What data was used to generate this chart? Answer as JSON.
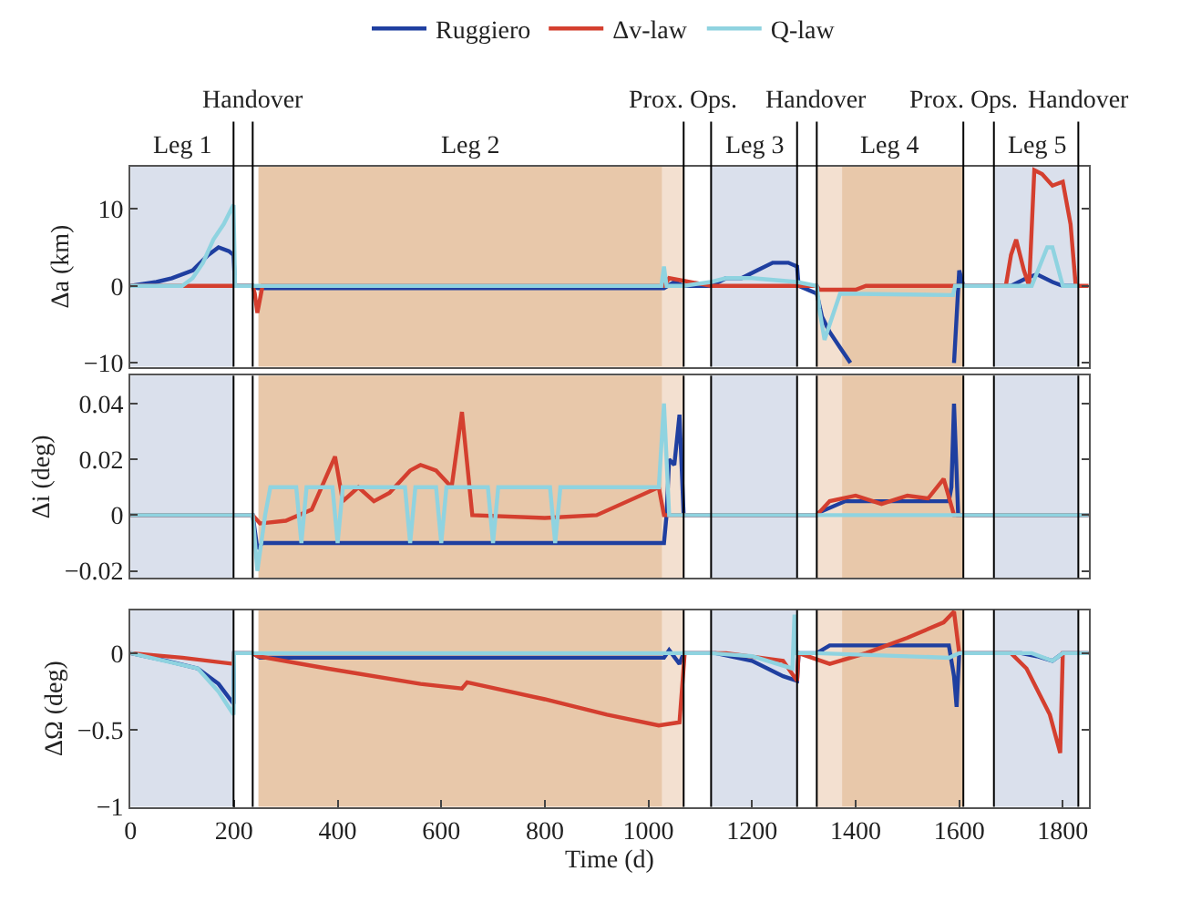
{
  "chart_data": [
    {
      "type": "line",
      "ylabel": "Δa (km)",
      "xlim": [
        0,
        1850
      ],
      "ylim": [
        -10.5,
        15.5
      ],
      "yticks": [
        {
          "value": -10,
          "label": "−10"
        },
        0,
        10
      ],
      "tick_labels": "y",
      "legend": "top",
      "grid": false,
      "line_style": "solid",
      "marker": "none",
      "series": [
        {
          "name": "Ruggiero",
          "color": "#1f3fa0",
          "x": [
            0,
            50,
            80,
            120,
            150,
            170,
            190,
            199,
            202,
            236,
            245,
            600,
            1030,
            1050,
            1068,
            1121,
            1150,
            1180,
            1210,
            1240,
            1270,
            1287,
            1290,
            1325,
            1335,
            1350,
            1370,
            1390,
            1392,
            1588,
            1590,
            1600,
            1608,
            1667,
            1700,
            1730,
            1750,
            1780,
            1800,
            1830
          ],
          "values": [
            0,
            0.5,
            1,
            2,
            4,
            5,
            4.5,
            4,
            0,
            0,
            -0.3,
            -0.3,
            -0.3,
            0.5,
            0,
            0,
            1,
            1,
            2,
            3,
            3,
            2.5,
            0,
            -1,
            -4,
            -6,
            -8,
            -10,
            null,
            null,
            -10,
            2,
            0,
            0,
            0,
            1,
            1.5,
            0.5,
            0,
            0
          ]
        },
        {
          "name": "Δv-law",
          "color": "#d43f2f",
          "x": [
            0,
            236,
            240,
            245,
            255,
            600,
            1030,
            1040,
            1121,
            1325,
            1330,
            1400,
            1420,
            1667,
            1690,
            1700,
            1710,
            1725,
            1735,
            1745,
            1760,
            1780,
            1800,
            1815,
            1825,
            1850
          ],
          "values": [
            0,
            0,
            -1,
            -3.5,
            0,
            0,
            0,
            1,
            0,
            0,
            -0.5,
            -0.5,
            0,
            0,
            0,
            4,
            6,
            2,
            0,
            15,
            14.5,
            13,
            13.5,
            8,
            0,
            0
          ]
        },
        {
          "name": "Q-law",
          "color": "#8fd3e0",
          "x": [
            0,
            100,
            120,
            140,
            160,
            180,
            195,
            199,
            202,
            236,
            600,
            1025,
            1030,
            1035,
            1068,
            1121,
            1150,
            1200,
            1287,
            1325,
            1330,
            1340,
            1350,
            1370,
            1588,
            1592,
            1667,
            1740,
            1770,
            1780,
            1800,
            1830
          ],
          "values": [
            0,
            0,
            1,
            3,
            6,
            8,
            10,
            10.5,
            0,
            0,
            0,
            0,
            2.5,
            0,
            0,
            0.5,
            1,
            1,
            0.5,
            0,
            -3,
            -7,
            -5,
            -1,
            -1.2,
            0,
            0,
            0,
            5,
            5,
            0,
            0
          ]
        }
      ],
      "bands": [
        {
          "axis": "x",
          "from": 0,
          "to": 199,
          "label": "Leg 1",
          "color": "#dae0ec"
        },
        {
          "axis": "x",
          "from": 247,
          "to": 1068,
          "label": "Leg 2",
          "color": "#e8c8aa"
        },
        {
          "axis": "x",
          "from": 1026,
          "to": 1068,
          "color": "#f3e0d0"
        },
        {
          "axis": "x",
          "from": 1121,
          "to": 1287,
          "label": "Leg 3",
          "color": "#dae0ec"
        },
        {
          "axis": "x",
          "from": 1325,
          "to": 1608,
          "label": "Leg 4",
          "color": "#e8c8aa"
        },
        {
          "axis": "x",
          "from": 1325,
          "to": 1374,
          "color": "#f3e0d0"
        },
        {
          "axis": "x",
          "from": 1667,
          "to": 1830,
          "label": "Leg 5",
          "color": "#dae0ec"
        }
      ],
      "ref_lines": [
        {
          "axis": "x",
          "value": 199,
          "color": "#000000"
        },
        {
          "axis": "x",
          "value": 236,
          "color": "#000000",
          "label": "Handover"
        },
        {
          "axis": "x",
          "value": 1068,
          "color": "#000000",
          "label": "Prox. Ops."
        },
        {
          "axis": "x",
          "value": 1121,
          "color": "#000000"
        },
        {
          "axis": "x",
          "value": 1287,
          "color": "#000000"
        },
        {
          "axis": "x",
          "value": 1325,
          "color": "#000000",
          "label": "Handover"
        },
        {
          "axis": "x",
          "value": 1608,
          "color": "#000000",
          "label": "Prox. Ops."
        },
        {
          "axis": "x",
          "value": 1667,
          "color": "#000000"
        },
        {
          "axis": "x",
          "value": 1830,
          "color": "#000000",
          "label": "Handover"
        }
      ]
    },
    {
      "type": "line",
      "ylabel": "Δi (deg)",
      "xlim": [
        0,
        1850
      ],
      "ylim": [
        -0.0225,
        0.05
      ],
      "yticks": [
        {
          "value": -0.02,
          "label": "−0.02"
        },
        0,
        0.02,
        0.04
      ],
      "tick_labels": "y",
      "grid": false,
      "line_style": "solid",
      "marker": "none",
      "series": [
        {
          "color": "#1f3fa0",
          "x": [
            0,
            236,
            245,
            255,
            1030,
            1035,
            1040,
            1050,
            1060,
            1068,
            1121,
            1325,
            1330,
            1380,
            1580,
            1585,
            1590,
            1598,
            1850
          ],
          "values": [
            0,
            0,
            -0.012,
            -0.01,
            -0.01,
            0,
            0.02,
            0.018,
            0.036,
            0,
            0,
            0,
            0.001,
            0.005,
            0.005,
            0.01,
            0.04,
            0,
            0
          ]
        },
        {
          "color": "#d43f2f",
          "x": [
            0,
            236,
            250,
            300,
            350,
            395,
            410,
            440,
            470,
            500,
            540,
            560,
            590,
            620,
            640,
            660,
            800,
            900,
            1020,
            1030,
            1325,
            1350,
            1400,
            1450,
            1500,
            1540,
            1570,
            1590,
            1850
          ],
          "values": [
            0,
            0,
            -0.003,
            -0.002,
            0.002,
            0.021,
            0.005,
            0.01,
            0.005,
            0.008,
            0.016,
            0.018,
            0.016,
            0.01,
            0.037,
            0,
            -0.001,
            0,
            0.01,
            0,
            0,
            0.005,
            0.007,
            0.004,
            0.007,
            0.006,
            0.013,
            0,
            0
          ]
        },
        {
          "color": "#8fd3e0",
          "x": [
            0,
            236,
            245,
            260,
            270,
            320,
            330,
            340,
            390,
            400,
            410,
            530,
            540,
            550,
            590,
            600,
            610,
            690,
            700,
            710,
            810,
            820,
            830,
            1020,
            1030,
            1040,
            1850
          ],
          "values": [
            0,
            0,
            -0.02,
            0,
            0.01,
            0.01,
            -0.01,
            0.01,
            0.01,
            -0.01,
            0.01,
            0.01,
            -0.01,
            0.01,
            0.01,
            -0.01,
            0.01,
            0.01,
            -0.01,
            0.01,
            0.01,
            -0.01,
            0.01,
            0.01,
            0.04,
            0,
            0
          ]
        }
      ],
      "bands": [
        {
          "axis": "x",
          "from": 0,
          "to": 199,
          "color": "#dae0ec"
        },
        {
          "axis": "x",
          "from": 247,
          "to": 1068,
          "color": "#e8c8aa"
        },
        {
          "axis": "x",
          "from": 1026,
          "to": 1068,
          "color": "#f3e0d0"
        },
        {
          "axis": "x",
          "from": 1121,
          "to": 1287,
          "color": "#dae0ec"
        },
        {
          "axis": "x",
          "from": 1325,
          "to": 1608,
          "color": "#e8c8aa"
        },
        {
          "axis": "x",
          "from": 1325,
          "to": 1374,
          "color": "#f3e0d0"
        },
        {
          "axis": "x",
          "from": 1667,
          "to": 1830,
          "color": "#dae0ec"
        }
      ],
      "ref_lines": [
        {
          "axis": "x",
          "value": 199,
          "color": "#000000"
        },
        {
          "axis": "x",
          "value": 236,
          "color": "#000000"
        },
        {
          "axis": "x",
          "value": 1068,
          "color": "#000000"
        },
        {
          "axis": "x",
          "value": 1121,
          "color": "#000000"
        },
        {
          "axis": "x",
          "value": 1287,
          "color": "#000000"
        },
        {
          "axis": "x",
          "value": 1325,
          "color": "#000000"
        },
        {
          "axis": "x",
          "value": 1608,
          "color": "#000000"
        },
        {
          "axis": "x",
          "value": 1667,
          "color": "#000000"
        },
        {
          "axis": "x",
          "value": 1830,
          "color": "#000000"
        }
      ]
    },
    {
      "type": "line",
      "ylabel": "ΔΩ (deg)",
      "xlabel": "Time (d)",
      "xlim": [
        0,
        1850
      ],
      "xticks": [
        0,
        200,
        400,
        600,
        800,
        1000,
        1200,
        1400,
        1600,
        1800
      ],
      "ylim": [
        -1,
        0.28
      ],
      "yticks": [
        {
          "value": -1,
          "label": "−1"
        },
        {
          "value": -0.5,
          "label": "−0.5"
        },
        0
      ],
      "grid": false,
      "line_style": "solid",
      "marker": "none",
      "series": [
        {
          "color": "#1f3fa0",
          "x": [
            0,
            70,
            130,
            170,
            199,
            200,
            236,
            250,
            1030,
            1040,
            1060,
            1068,
            1130,
            1200,
            1260,
            1287,
            1290,
            1325,
            1350,
            1580,
            1590,
            1595,
            1600,
            1720,
            1750,
            1780,
            1800,
            1850
          ],
          "values": [
            0,
            -0.05,
            -0.1,
            -0.2,
            -0.33,
            0,
            0,
            -0.03,
            -0.03,
            0.02,
            -0.07,
            0,
            0,
            -0.05,
            -0.15,
            -0.18,
            0,
            0,
            0.05,
            0.05,
            -0.15,
            -0.35,
            0,
            0,
            -0.02,
            -0.05,
            0,
            0
          ]
        },
        {
          "color": "#d43f2f",
          "x": [
            0,
            100,
            199,
            200,
            236,
            245,
            380,
            560,
            640,
            650,
            800,
            920,
            1020,
            1060,
            1070,
            1150,
            1260,
            1287,
            1290,
            1350,
            1420,
            1500,
            1570,
            1590,
            1600,
            1700,
            1730,
            1775,
            1795,
            1800,
            1850
          ],
          "values": [
            0,
            -0.03,
            -0.07,
            0,
            0,
            -0.02,
            -0.1,
            -0.2,
            -0.23,
            -0.19,
            -0.3,
            -0.4,
            -0.47,
            -0.45,
            0,
            0,
            -0.05,
            -0.18,
            0,
            -0.07,
            0,
            0.1,
            0.2,
            0.27,
            0,
            0,
            -0.1,
            -0.4,
            -0.65,
            0,
            0
          ]
        },
        {
          "color": "#8fd3e0",
          "x": [
            0,
            130,
            170,
            199,
            200,
            236,
            1060,
            1121,
            1200,
            1278,
            1282,
            1286,
            1325,
            1580,
            1600,
            1740,
            1780,
            1800,
            1850
          ],
          "values": [
            0,
            -0.1,
            -0.25,
            -0.4,
            0,
            0,
            0,
            0,
            -0.02,
            -0.1,
            0.25,
            0,
            0,
            -0.03,
            0,
            0,
            -0.05,
            0,
            0
          ]
        }
      ],
      "bands": [
        {
          "axis": "x",
          "from": 0,
          "to": 199,
          "color": "#dae0ec"
        },
        {
          "axis": "x",
          "from": 247,
          "to": 1068,
          "color": "#e8c8aa"
        },
        {
          "axis": "x",
          "from": 1026,
          "to": 1068,
          "color": "#f3e0d0"
        },
        {
          "axis": "x",
          "from": 1121,
          "to": 1287,
          "color": "#dae0ec"
        },
        {
          "axis": "x",
          "from": 1325,
          "to": 1608,
          "color": "#e8c8aa"
        },
        {
          "axis": "x",
          "from": 1325,
          "to": 1374,
          "color": "#f3e0d0"
        },
        {
          "axis": "x",
          "from": 1667,
          "to": 1830,
          "color": "#dae0ec"
        }
      ],
      "ref_lines": [
        {
          "axis": "x",
          "value": 199,
          "color": "#000000"
        },
        {
          "axis": "x",
          "value": 236,
          "color": "#000000"
        },
        {
          "axis": "x",
          "value": 1068,
          "color": "#000000"
        },
        {
          "axis": "x",
          "value": 1121,
          "color": "#000000"
        },
        {
          "axis": "x",
          "value": 1287,
          "color": "#000000"
        },
        {
          "axis": "x",
          "value": 1325,
          "color": "#000000"
        },
        {
          "axis": "x",
          "value": 1608,
          "color": "#000000"
        },
        {
          "axis": "x",
          "value": 1667,
          "color": "#000000"
        },
        {
          "axis": "x",
          "value": 1830,
          "color": "#000000"
        }
      ]
    }
  ]
}
